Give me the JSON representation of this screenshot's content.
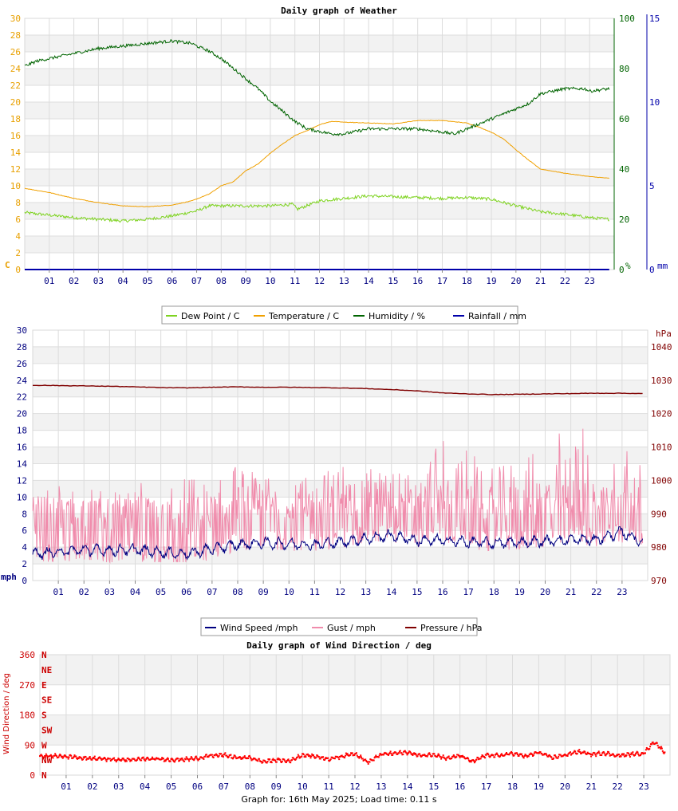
{
  "chart_data": [
    {
      "type": "line",
      "title": "Daily graph of Weather",
      "x_ticks": [
        "01",
        "02",
        "03",
        "04",
        "05",
        "06",
        "07",
        "08",
        "09",
        "10",
        "11",
        "12",
        "13",
        "14",
        "15",
        "16",
        "17",
        "18",
        "19",
        "20",
        "21",
        "22",
        "23"
      ],
      "xlim": [
        0,
        24
      ],
      "axes": {
        "left": {
          "label": "C",
          "ylim": [
            0,
            30
          ],
          "ticks": [
            "0",
            "2",
            "4",
            "6",
            "8",
            "10",
            "12",
            "14",
            "16",
            "18",
            "20",
            "22",
            "24",
            "26",
            "28",
            "30"
          ],
          "color": "#e8a000"
        },
        "right1": {
          "label": "%",
          "ylim": [
            0,
            100
          ],
          "ticks": [
            "0",
            "20",
            "40",
            "60",
            "80",
            "100"
          ],
          "color": "#006400"
        },
        "right2": {
          "label": "mm",
          "ylim": [
            0,
            15
          ],
          "ticks": [
            "0",
            "5",
            "10",
            "15"
          ],
          "color": "#0000aa"
        }
      },
      "grid": true,
      "legend": {
        "position": "bottom"
      },
      "series": [
        {
          "name": "Dew Point / C",
          "axis": "left",
          "color": "#7ed320",
          "x": [
            0,
            1,
            2,
            3,
            4,
            5,
            6,
            7,
            7.5,
            8,
            9,
            10,
            10.9,
            11.1,
            12,
            13,
            14,
            15,
            16,
            17,
            18,
            19,
            20,
            21,
            22,
            23,
            23.8
          ],
          "y": [
            6.8,
            6.5,
            6.2,
            6.0,
            5.8,
            6.0,
            6.4,
            7.0,
            7.6,
            7.6,
            7.6,
            7.6,
            7.8,
            7.2,
            8.2,
            8.5,
            8.8,
            8.7,
            8.6,
            8.5,
            8.6,
            8.4,
            7.6,
            6.9,
            6.6,
            6.2,
            6.0
          ]
        },
        {
          "name": "Temperature / C",
          "axis": "left",
          "color": "#f0a000",
          "x": [
            0,
            1,
            2,
            3,
            4,
            5,
            6,
            6.8,
            7.5,
            8,
            8.5,
            9,
            9.5,
            10,
            10.5,
            11,
            11.5,
            12,
            12.5,
            13,
            14,
            15,
            16,
            17,
            18,
            18.5,
            19,
            19.5,
            20,
            20.5,
            21,
            22,
            23,
            23.8
          ],
          "y": [
            9.7,
            9.2,
            8.5,
            8.0,
            7.6,
            7.5,
            7.7,
            8.2,
            9.0,
            10.0,
            10.5,
            11.8,
            12.6,
            13.9,
            15.0,
            16.0,
            16.6,
            17.3,
            17.7,
            17.6,
            17.5,
            17.4,
            17.8,
            17.8,
            17.5,
            17.0,
            16.4,
            15.6,
            14.3,
            13.1,
            12.0,
            11.5,
            11.1,
            10.9
          ]
        },
        {
          "name": "Humidity / %",
          "axis": "right1",
          "color": "#006400",
          "x": [
            0,
            0.5,
            1,
            2,
            3,
            4,
            5,
            6,
            6.8,
            7,
            7.5,
            8,
            8.5,
            9,
            9.5,
            10,
            10.5,
            11,
            11.5,
            12,
            12.5,
            13,
            14,
            15,
            16,
            16.8,
            17.5,
            18,
            18.5,
            19,
            19.5,
            20,
            20.5,
            21,
            22,
            22.8,
            23,
            23.8
          ],
          "y": [
            81,
            83,
            84,
            86,
            88,
            89,
            90,
            91,
            90,
            89,
            87,
            84,
            80,
            76,
            72,
            67,
            63,
            59,
            56,
            55,
            54,
            54,
            56,
            56,
            56,
            55,
            54,
            56,
            58,
            60,
            62,
            64,
            66,
            70,
            72,
            72,
            71,
            72
          ]
        },
        {
          "name": "Rainfall / mm",
          "axis": "right2",
          "color": "#0000aa",
          "x": [
            0,
            23.8
          ],
          "y": [
            0,
            0
          ]
        }
      ]
    },
    {
      "type": "line",
      "title": "",
      "x_ticks": [
        "01",
        "02",
        "03",
        "04",
        "05",
        "06",
        "07",
        "08",
        "09",
        "10",
        "11",
        "12",
        "13",
        "14",
        "15",
        "16",
        "17",
        "18",
        "19",
        "20",
        "21",
        "22",
        "23"
      ],
      "xlim": [
        0,
        24
      ],
      "axes": {
        "left": {
          "label": "mph",
          "ylim": [
            0,
            30
          ],
          "ticks": [
            "0",
            "2",
            "4",
            "6",
            "8",
            "10",
            "12",
            "14",
            "16",
            "18",
            "20",
            "22",
            "24",
            "26",
            "28",
            "30"
          ],
          "color": "#000080"
        },
        "right": {
          "label": "hPa",
          "ylim": [
            970,
            1045
          ],
          "ticks": [
            "970",
            "980",
            "990",
            "1000",
            "1010",
            "1020",
            "1030",
            "1040"
          ],
          "color": "#800000"
        }
      },
      "grid": true,
      "legend": {
        "position": "top"
      },
      "series": [
        {
          "name": "Wind Speed /mph",
          "axis": "left",
          "color": "#000080",
          "x": [
            0,
            1,
            2,
            3,
            4,
            5,
            6,
            7,
            8,
            9,
            10,
            11,
            12,
            13,
            14,
            15,
            16,
            17,
            18,
            19,
            20,
            21,
            22,
            23,
            23.8
          ],
          "y": [
            3.2,
            3.4,
            3.7,
            3.6,
            3.7,
            3.4,
            3.2,
            3.8,
            4.3,
            4.5,
            4.4,
            4.3,
            4.6,
            5.0,
            5.4,
            4.8,
            4.8,
            4.6,
            4.5,
            4.6,
            4.7,
            4.9,
            4.9,
            5.8,
            4.6
          ]
        },
        {
          "name": "Gust / mph",
          "axis": "left",
          "color": "#f08cac",
          "x": [
            0,
            1,
            2,
            3,
            4,
            5,
            6,
            7,
            8,
            9,
            10,
            11,
            12,
            13,
            14,
            15,
            16,
            17,
            18,
            19,
            20,
            21,
            22,
            23,
            23.8
          ],
          "y": [
            6.5,
            7.0,
            7.5,
            7.0,
            7.2,
            7.0,
            6.5,
            7.5,
            8.5,
            8.8,
            8.5,
            8.5,
            8.8,
            9.2,
            9.5,
            8.8,
            9.5,
            8.8,
            8.5,
            8.5,
            9.0,
            9.5,
            9.0,
            9.5,
            8.5
          ],
          "max": [
            10.5,
            11.5,
            11.8,
            11.0,
            11.8,
            11.5,
            12.6,
            12.2,
            13.8,
            13.0,
            13.5,
            13.5,
            14.0,
            13.8,
            14.0,
            13.0,
            18.5,
            15.5,
            13.8,
            14.5,
            17.0,
            19.5,
            17.5,
            17.5,
            13.5
          ]
        },
        {
          "name": "Pressure / hPa",
          "axis": "right",
          "color": "#800000",
          "x": [
            0,
            1,
            2,
            3,
            4,
            5,
            6,
            7,
            8,
            9,
            10,
            11,
            12,
            13,
            14,
            15,
            16,
            17,
            18,
            19,
            20,
            21,
            22,
            23,
            23.8
          ],
          "y": [
            1028.5,
            1028.4,
            1028.3,
            1028.2,
            1028.0,
            1027.8,
            1027.7,
            1027.9,
            1028.0,
            1027.9,
            1027.9,
            1027.8,
            1027.7,
            1027.5,
            1027.2,
            1026.8,
            1026.2,
            1025.9,
            1025.7,
            1025.8,
            1025.9,
            1026.0,
            1026.1,
            1026.1,
            1026.0
          ]
        }
      ]
    },
    {
      "type": "scatter",
      "title": "Daily graph of Wind Direction / deg",
      "ylabel": "Wind Direction / deg",
      "x_ticks": [
        "01",
        "02",
        "03",
        "04",
        "05",
        "06",
        "07",
        "08",
        "09",
        "10",
        "11",
        "12",
        "13",
        "14",
        "15",
        "16",
        "17",
        "18",
        "19",
        "20",
        "21",
        "22",
        "23"
      ],
      "xlim": [
        0,
        24
      ],
      "ylim": [
        0,
        360
      ],
      "y_ticks": [
        "0",
        "90",
        "180",
        "270",
        "360"
      ],
      "compass": [
        "N",
        "NE",
        "E",
        "SE",
        "S",
        "SW",
        "W",
        "NW",
        "N"
      ],
      "grid": true,
      "color": "#ff0000",
      "series": [
        {
          "name": "",
          "x": [
            0,
            0.5,
            1,
            1.5,
            2,
            2.5,
            3,
            3.5,
            4,
            4.5,
            5,
            5.5,
            6,
            6.5,
            7,
            7.5,
            8,
            8.5,
            9,
            9.5,
            10,
            10.5,
            11,
            11.5,
            12,
            12.5,
            13,
            13.5,
            14,
            14.5,
            15,
            15.5,
            16,
            16.5,
            17,
            17.5,
            18,
            18.5,
            19,
            19.5,
            20,
            20.5,
            21,
            21.5,
            22,
            22.5,
            23,
            23.4,
            23.8
          ],
          "y": [
            55,
            58,
            55,
            52,
            50,
            48,
            46,
            46,
            48,
            48,
            46,
            47,
            50,
            58,
            60,
            52,
            52,
            40,
            45,
            42,
            60,
            56,
            48,
            56,
            65,
            38,
            62,
            65,
            68,
            58,
            62,
            50,
            58,
            40,
            60,
            58,
            65,
            56,
            68,
            52,
            60,
            70,
            62,
            66,
            58,
            62,
            65,
            100,
            68
          ]
        }
      ]
    }
  ],
  "footer": {
    "text": "Graph for: 16th May 2025; Load time: 0.11 s"
  }
}
